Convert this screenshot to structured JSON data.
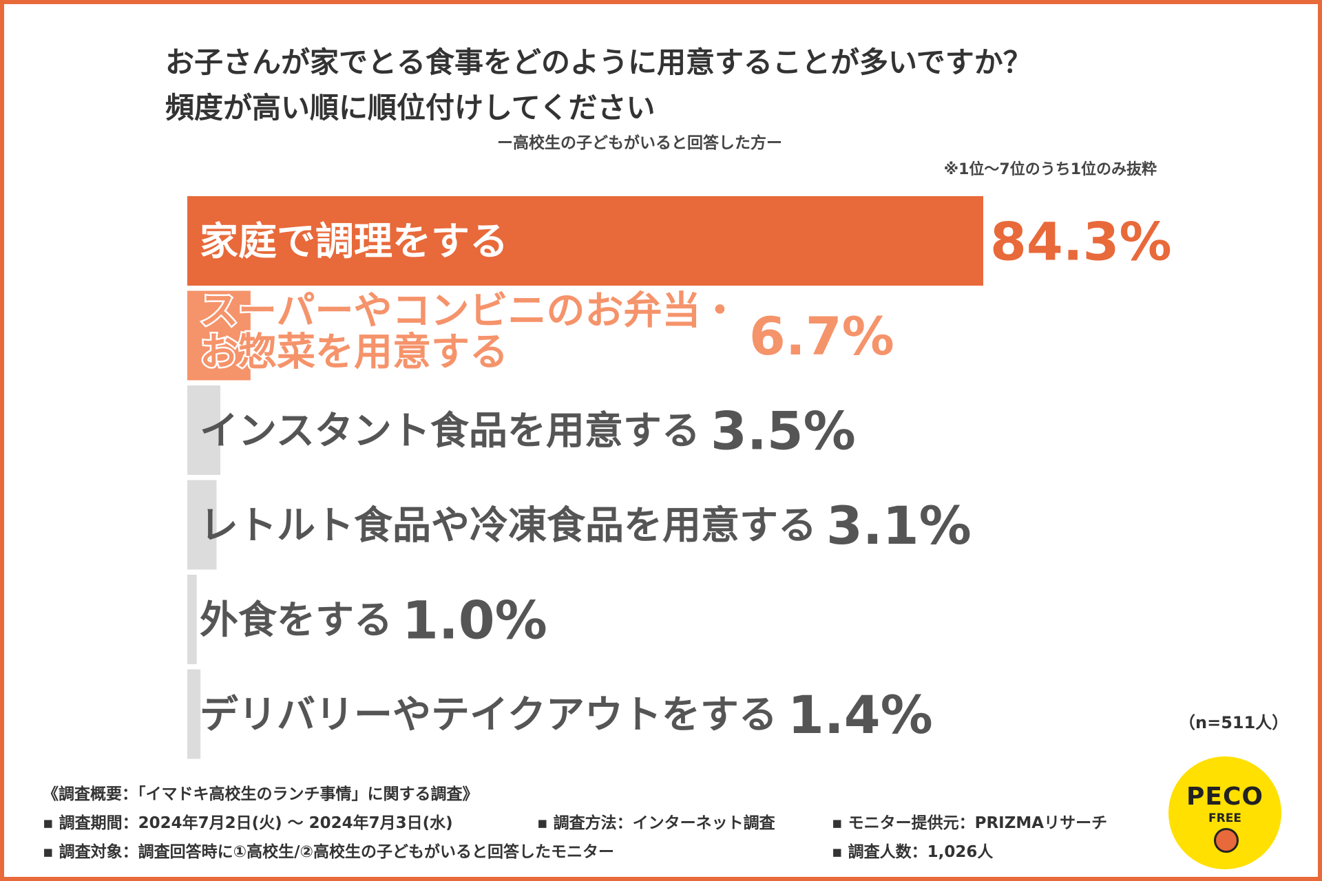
{
  "title": {
    "line1": "お子さんが家でとる食事をどのように用意することが多いですか？",
    "line2": "頻度が高い順に順位付けしてください"
  },
  "subtitle": "ー高校生の子どもがいると回答した方ー",
  "note": "※1位〜7位のうち1位のみ抜粋",
  "chart_data": {
    "type": "bar",
    "orientation": "horizontal",
    "categories": [
      [
        "家庭で調理をする"
      ],
      [
        "スーパーやコンビニのお弁当・",
        "お惣菜を用意する"
      ],
      [
        "インスタント食品を用意する"
      ],
      [
        "レトルト食品や冷凍食品を用意する"
      ],
      [
        "外食をする"
      ],
      [
        "デリバリーやテイクアウトをする"
      ]
    ],
    "values": [
      84.3,
      6.7,
      3.5,
      3.1,
      1.0,
      1.4
    ],
    "value_labels": [
      "84.3%",
      "6.7%",
      "3.5%",
      "3.1%",
      "1.0%",
      "1.4%"
    ],
    "unit": "%",
    "colors": {
      "first": "#e8693a",
      "second": "#f5936b",
      "rest": "#dcdcdc",
      "rest_text": "#555555"
    }
  },
  "sample_size": "（n=511人）",
  "survey": {
    "heading": "《調査概要：「イマドキ高校生のランチ事情」に関する調査》",
    "period": "▪ 調査期間：2024年7月2日(火) 〜 2024年7月3日(水)",
    "method": "▪ 調査方法：インターネット調査",
    "provider": "▪ モニター提供元：PRIZMAリサーチ",
    "target": "▪ 調査対象：調査回答時に①高校生/②高校生の子どもがいると回答したモニター",
    "count": "▪ 調査人数：1,026人"
  },
  "logo": {
    "line1": "PECO",
    "line2": "FREE"
  }
}
